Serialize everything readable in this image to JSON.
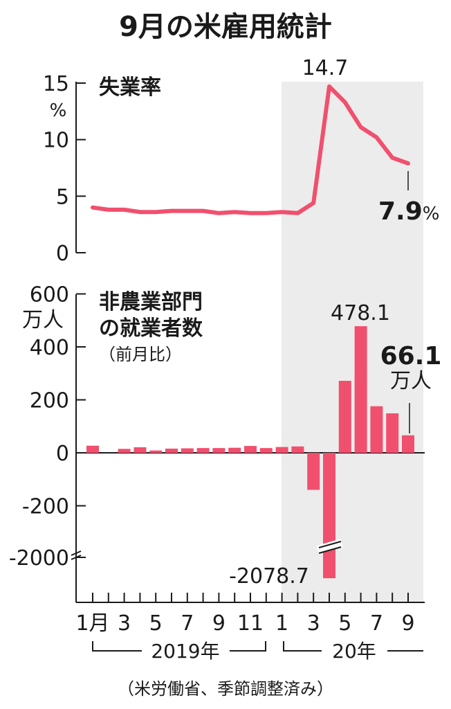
{
  "title": "9月の米雇用統計",
  "source": "（米労働省、季節調整済み）",
  "year_labels": {
    "y2019": "2019年",
    "y2020": "20年"
  },
  "x_ticks": [
    "1月",
    "3",
    "5",
    "7",
    "9",
    "11",
    "1",
    "3",
    "5",
    "7",
    "9"
  ],
  "colors": {
    "series": "#f0506e",
    "shade": "#ececec",
    "axis": "#1a1a1a"
  },
  "chart_data": [
    {
      "type": "line",
      "title": "失業率",
      "y_unit": "%",
      "ylim": [
        0,
        15
      ],
      "y_ticks": [
        "0",
        "5",
        "10",
        "15"
      ],
      "x": [
        "2019-01",
        "2019-02",
        "2019-03",
        "2019-04",
        "2019-05",
        "2019-06",
        "2019-07",
        "2019-08",
        "2019-09",
        "2019-10",
        "2019-11",
        "2019-12",
        "2020-01",
        "2020-02",
        "2020-03",
        "2020-04",
        "2020-05",
        "2020-06",
        "2020-07",
        "2020-08",
        "2020-09"
      ],
      "values": [
        4.0,
        3.8,
        3.8,
        3.6,
        3.6,
        3.7,
        3.7,
        3.7,
        3.5,
        3.6,
        3.5,
        3.5,
        3.6,
        3.5,
        4.4,
        14.7,
        13.3,
        11.1,
        10.2,
        8.4,
        7.9
      ],
      "annotations": {
        "peak": "14.7",
        "last_value": "7.9",
        "last_unit": "%"
      }
    },
    {
      "type": "bar",
      "title_line1": "非農業部門",
      "title_line2": "の就業者数",
      "subtitle": "（前月比）",
      "y_unit": "万人",
      "y_ticks": [
        "-2000",
        "-200",
        "0",
        "200",
        "400",
        "600"
      ],
      "axis_break": true,
      "x": [
        "2019-01",
        "2019-02",
        "2019-03",
        "2019-04",
        "2019-05",
        "2019-06",
        "2019-07",
        "2019-08",
        "2019-09",
        "2019-10",
        "2019-11",
        "2019-12",
        "2020-01",
        "2020-02",
        "2020-03",
        "2020-04",
        "2020-05",
        "2020-06",
        "2020-07",
        "2020-08",
        "2020-09"
      ],
      "values": [
        27,
        0,
        15,
        21,
        9,
        16,
        17,
        18,
        18,
        19,
        26,
        18,
        22,
        24,
        -140,
        -2078.7,
        272,
        478.1,
        176,
        149,
        66.1
      ],
      "annotations": {
        "max": "478.1",
        "min": "-2078.7",
        "last_value": "66.1",
        "last_unit": "万人"
      }
    }
  ]
}
